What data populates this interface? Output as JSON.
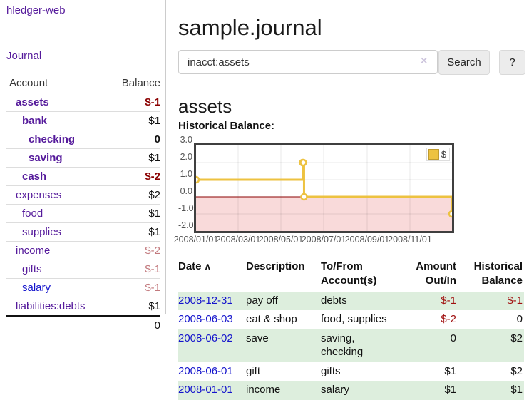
{
  "app": {
    "title": "hledger-web",
    "journal_link": "Journal"
  },
  "sidebar": {
    "header": {
      "account": "Account",
      "balance": "Balance"
    },
    "accounts": [
      {
        "name": "assets",
        "depth": 1,
        "balance": "$-1",
        "bold": true,
        "neg": "strong"
      },
      {
        "name": "bank",
        "depth": 2,
        "balance": "$1",
        "bold": true,
        "neg": "none"
      },
      {
        "name": "checking",
        "depth": 3,
        "balance": "0",
        "bold": true,
        "neg": "none"
      },
      {
        "name": "saving",
        "depth": 3,
        "balance": "$1",
        "bold": true,
        "neg": "none"
      },
      {
        "name": "cash",
        "depth": 2,
        "balance": "$-2",
        "bold": true,
        "neg": "strong"
      },
      {
        "name": "expenses",
        "depth": 1,
        "balance": "$2",
        "bold": false,
        "neg": "none"
      },
      {
        "name": "food",
        "depth": 2,
        "balance": "$1",
        "bold": false,
        "neg": "none"
      },
      {
        "name": "supplies",
        "depth": 2,
        "balance": "$1",
        "bold": false,
        "neg": "none"
      },
      {
        "name": "income",
        "depth": 1,
        "balance": "$-2",
        "bold": false,
        "neg": "soft"
      },
      {
        "name": "gifts",
        "depth": 2,
        "balance": "$-1",
        "bold": false,
        "neg": "soft"
      },
      {
        "name": "salary",
        "depth": 2,
        "balance": "$-1",
        "bold": false,
        "neg": "soft",
        "link_style": "blue"
      },
      {
        "name": "liabilities:debts",
        "depth": 1,
        "balance": "$1",
        "bold": false,
        "neg": "none"
      }
    ],
    "total": "0"
  },
  "header": {
    "title": "sample.journal"
  },
  "search": {
    "value": "inacct:assets",
    "clear_icon": "×",
    "button": "Search",
    "help_button": "?"
  },
  "account_page": {
    "heading": "assets",
    "chart_label": "Historical Balance:"
  },
  "chart_data": {
    "type": "line",
    "step": true,
    "title": "Historical Balance",
    "series": [
      {
        "name": "$",
        "color": "#edc240",
        "points": [
          [
            "2008/01/01",
            1
          ],
          [
            "2008/06/01",
            2
          ],
          [
            "2008/06/02",
            2
          ],
          [
            "2008/06/03",
            0
          ],
          [
            "2008/12/31",
            -1
          ]
        ]
      }
    ],
    "ylim": [
      -2,
      3
    ],
    "yticks": [
      "3.0",
      "2.0",
      "1.0",
      "0.0",
      "-1.0",
      "-2.0"
    ],
    "xticks": [
      "2008/01/01",
      "2008/03/01",
      "2008/05/01",
      "2008/07/01",
      "2008/09/01",
      "2008/11/01"
    ],
    "legend": "$",
    "legend_position": "top-right",
    "grid": true,
    "negative_region_color": "#f9dada",
    "zero_line_color": "#8b0000",
    "frame_color": "#3f3f3f"
  },
  "register": {
    "headers": {
      "date": "Date",
      "sort_icon": "∧",
      "description": "Description",
      "accounts": "To/From\nAccount(s)",
      "amount": "Amount\nOut/In",
      "balance": "Historical\nBalance"
    },
    "rows": [
      {
        "date": "2008-12-31",
        "description": "pay off",
        "accounts": "debts",
        "amount": "$-1",
        "amount_neg": true,
        "balance": "$-1",
        "balance_neg": true
      },
      {
        "date": "2008-06-03",
        "description": "eat & shop",
        "accounts": "food, supplies",
        "amount": "$-2",
        "amount_neg": true,
        "balance": "0",
        "balance_neg": false
      },
      {
        "date": "2008-06-02",
        "description": "save",
        "accounts": "saving, checking",
        "amount": "0",
        "amount_neg": false,
        "balance": "$2",
        "balance_neg": false
      },
      {
        "date": "2008-06-01",
        "description": "gift",
        "accounts": "gifts",
        "amount": "$1",
        "amount_neg": false,
        "balance": "$2",
        "balance_neg": false
      },
      {
        "date": "2008-01-01",
        "description": "income",
        "accounts": "salary",
        "amount": "$1",
        "amount_neg": false,
        "balance": "$1",
        "balance_neg": false
      }
    ]
  }
}
